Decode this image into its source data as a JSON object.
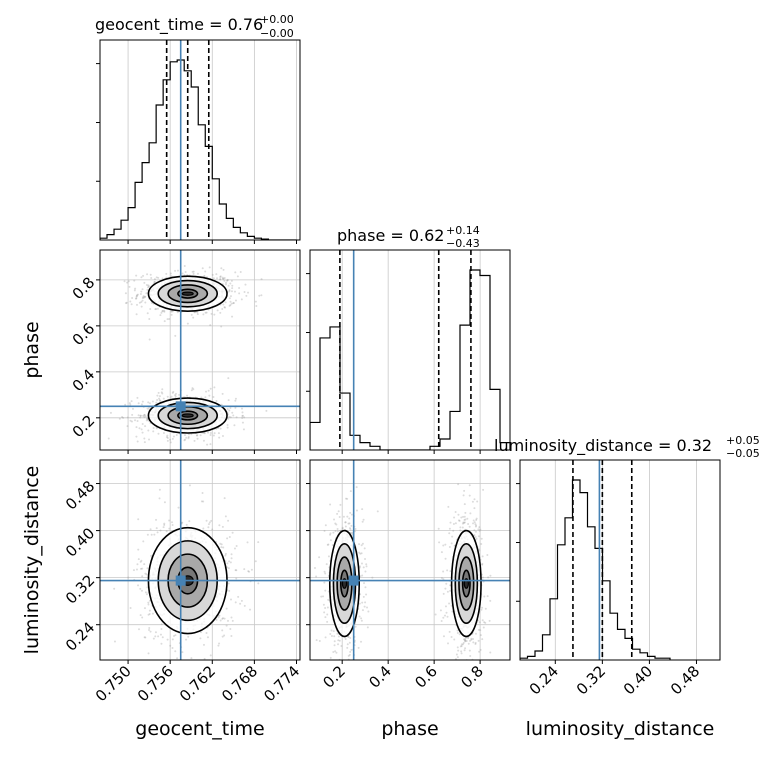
{
  "chart_data": {
    "type": "corner",
    "parameters": [
      "geocent_time",
      "phase",
      "luminosity_distance"
    ],
    "truth_color": "#4682b4",
    "titles": [
      {
        "param": "geocent_time",
        "prefix": "geocent_time = 0.76",
        "plus": "+0.00",
        "minus": "−0.00"
      },
      {
        "param": "phase",
        "prefix": "phase = 0.62",
        "plus": "+0.14",
        "minus": "−0.43"
      },
      {
        "param": "luminosity_distance",
        "prefix": "luminosity_distance = 0.32",
        "plus": "+0.05",
        "minus": "−0.05"
      }
    ],
    "axes": {
      "geocent_time": {
        "range": [
          0.746,
          0.7745
        ],
        "ticks": [
          0.75,
          0.756,
          0.762,
          0.768,
          0.774
        ],
        "tick_labels": [
          "0.750",
          "0.756",
          "0.762",
          "0.768",
          "0.774"
        ]
      },
      "phase": {
        "range": [
          0.06,
          0.93
        ],
        "ticks": [
          0.2,
          0.4,
          0.6,
          0.8
        ],
        "tick_labels": [
          "0.2",
          "0.4",
          "0.6",
          "0.8"
        ]
      },
      "luminosity_distance": {
        "range": [
          0.18,
          0.52
        ],
        "ticks": [
          0.24,
          0.32,
          0.4,
          0.48
        ],
        "tick_labels": [
          "0.24",
          "0.32",
          "0.40",
          "0.48"
        ]
      }
    },
    "truths": {
      "geocent_time": 0.7575,
      "phase": 0.25,
      "luminosity_distance": 0.315
    },
    "quantiles": {
      "geocent_time": [
        0.7555,
        0.7585,
        0.7615
      ],
      "phase": [
        0.19,
        0.62,
        0.76
      ],
      "luminosity_distance": [
        0.27,
        0.32,
        0.37
      ]
    },
    "histograms": {
      "geocent_time": {
        "bin_start": 0.746,
        "bin_width": 0.001,
        "counts": [
          0.01,
          0.03,
          0.06,
          0.11,
          0.18,
          0.32,
          0.43,
          0.54,
          0.75,
          0.89,
          0.99,
          1.0,
          0.94,
          0.85,
          0.64,
          0.52,
          0.34,
          0.2,
          0.12,
          0.07,
          0.04,
          0.02,
          0.01,
          0.005,
          0.0,
          0.0,
          0.0,
          0.0
        ]
      },
      "phase": {
        "bin_start": 0.06,
        "bin_width": 0.0435,
        "counts": [
          0.15,
          0.61,
          0.67,
          0.31,
          0.08,
          0.04,
          0.02,
          0.0,
          0.0,
          0.0,
          0.0,
          0.0,
          0.02,
          0.06,
          0.21,
          0.68,
          0.98,
          0.95,
          0.33,
          0.04
        ]
      },
      "luminosity_distance": {
        "bin_start": 0.18,
        "bin_width": 0.01275,
        "counts": [
          0.01,
          0.02,
          0.05,
          0.14,
          0.34,
          0.64,
          0.79,
          1.0,
          0.93,
          0.74,
          0.62,
          0.44,
          0.26,
          0.17,
          0.12,
          0.06,
          0.04,
          0.02,
          0.01,
          0.01
        ]
      }
    },
    "modes_2d": {
      "phase_vs_geocent_time": [
        {
          "x": 0.7585,
          "y": 0.74,
          "sx": 0.0028,
          "sy": 0.038
        },
        {
          "x": 0.7585,
          "y": 0.21,
          "sx": 0.0028,
          "sy": 0.038
        }
      ],
      "luminosity_distance_vs_geocent_time": [
        {
          "x": 0.7585,
          "y": 0.315,
          "sx": 0.0028,
          "sy": 0.045
        }
      ],
      "luminosity_distance_vs_phase": [
        {
          "x": 0.21,
          "y": 0.31,
          "sx": 0.032,
          "sy": 0.045
        },
        {
          "x": 0.74,
          "y": 0.31,
          "sx": 0.032,
          "sy": 0.045
        }
      ]
    },
    "contour_levels_sigma": [
      0.5,
      1.0,
      1.5,
      2.0
    ],
    "grid": true
  }
}
